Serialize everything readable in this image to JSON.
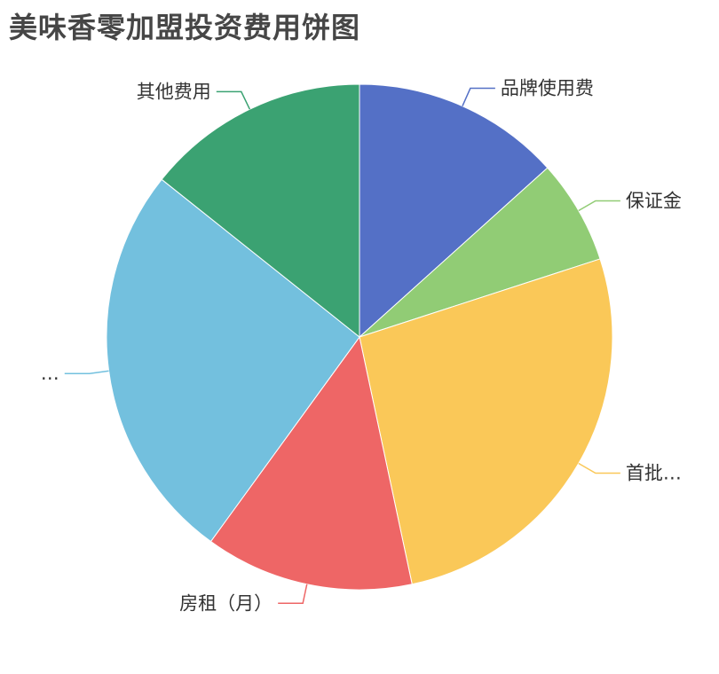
{
  "chart_data": {
    "type": "pie",
    "title": "美味香零加盟投资费用饼图",
    "slices": [
      {
        "label": "品牌使用费",
        "value": 14,
        "color": "#5470c6"
      },
      {
        "label": "保证金",
        "value": 7,
        "color": "#91cc75"
      },
      {
        "label": "首批…",
        "value": 28,
        "color": "#fac858"
      },
      {
        "label": "房租（月）",
        "value": 14,
        "color": "#ee6666"
      },
      {
        "label": "…",
        "value": 27,
        "color": "#73c0de"
      },
      {
        "label": "其他费用",
        "value": 15,
        "color": "#3ba272"
      }
    ]
  }
}
